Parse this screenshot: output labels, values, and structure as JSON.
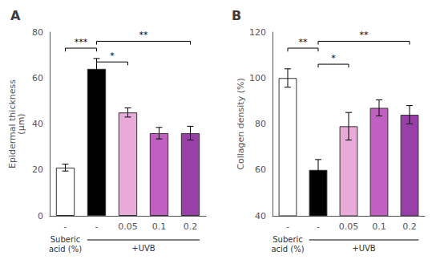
{
  "chart_data": [
    {
      "type": "bar",
      "title": "A",
      "categories": [
        "-",
        "-",
        "0.05",
        "0.1",
        "0.2"
      ],
      "values": [
        21,
        64,
        45,
        36,
        36
      ],
      "errors": [
        1.5,
        4.5,
        2.0,
        2.5,
        3.0
      ],
      "colors": [
        "white",
        "black",
        "#e8aad8",
        "#c060c0",
        "#9840a8"
      ],
      "ylabel": "Epidermal thickness\n(μm)",
      "xlabel": "Suberic\nacid (%)",
      "annotation": "+UVB",
      "ylim": [
        0,
        80
      ],
      "yticks": [
        0,
        20,
        40,
        60,
        80
      ],
      "sig_brackets": [
        {
          "x1": 0,
          "x2": 1,
          "y": 73,
          "label": "***"
        },
        {
          "x1": 1,
          "x2": 2,
          "y": 67,
          "label": "*"
        },
        {
          "x1": 1,
          "x2": 4,
          "y": 76,
          "label": "**"
        }
      ]
    },
    {
      "type": "bar",
      "title": "B",
      "categories": [
        "-",
        "-",
        "0.05",
        "0.1",
        "0.2"
      ],
      "values": [
        100,
        60,
        79,
        87,
        84
      ],
      "errors": [
        4.0,
        4.5,
        6.0,
        3.5,
        4.0
      ],
      "colors": [
        "white",
        "black",
        "#e8aad8",
        "#c060c0",
        "#9840a8"
      ],
      "ylabel": "Collagen density (%)",
      "xlabel": "Suberic\nacid (%)",
      "annotation": "+UVB",
      "ylim": [
        40,
        120
      ],
      "yticks": [
        40,
        60,
        80,
        100,
        120
      ],
      "sig_brackets": [
        {
          "x1": 0,
          "x2": 1,
          "y": 113,
          "label": "**"
        },
        {
          "x1": 1,
          "x2": 2,
          "y": 106,
          "label": "*"
        },
        {
          "x1": 1,
          "x2": 4,
          "y": 116,
          "label": "**"
        }
      ]
    }
  ]
}
